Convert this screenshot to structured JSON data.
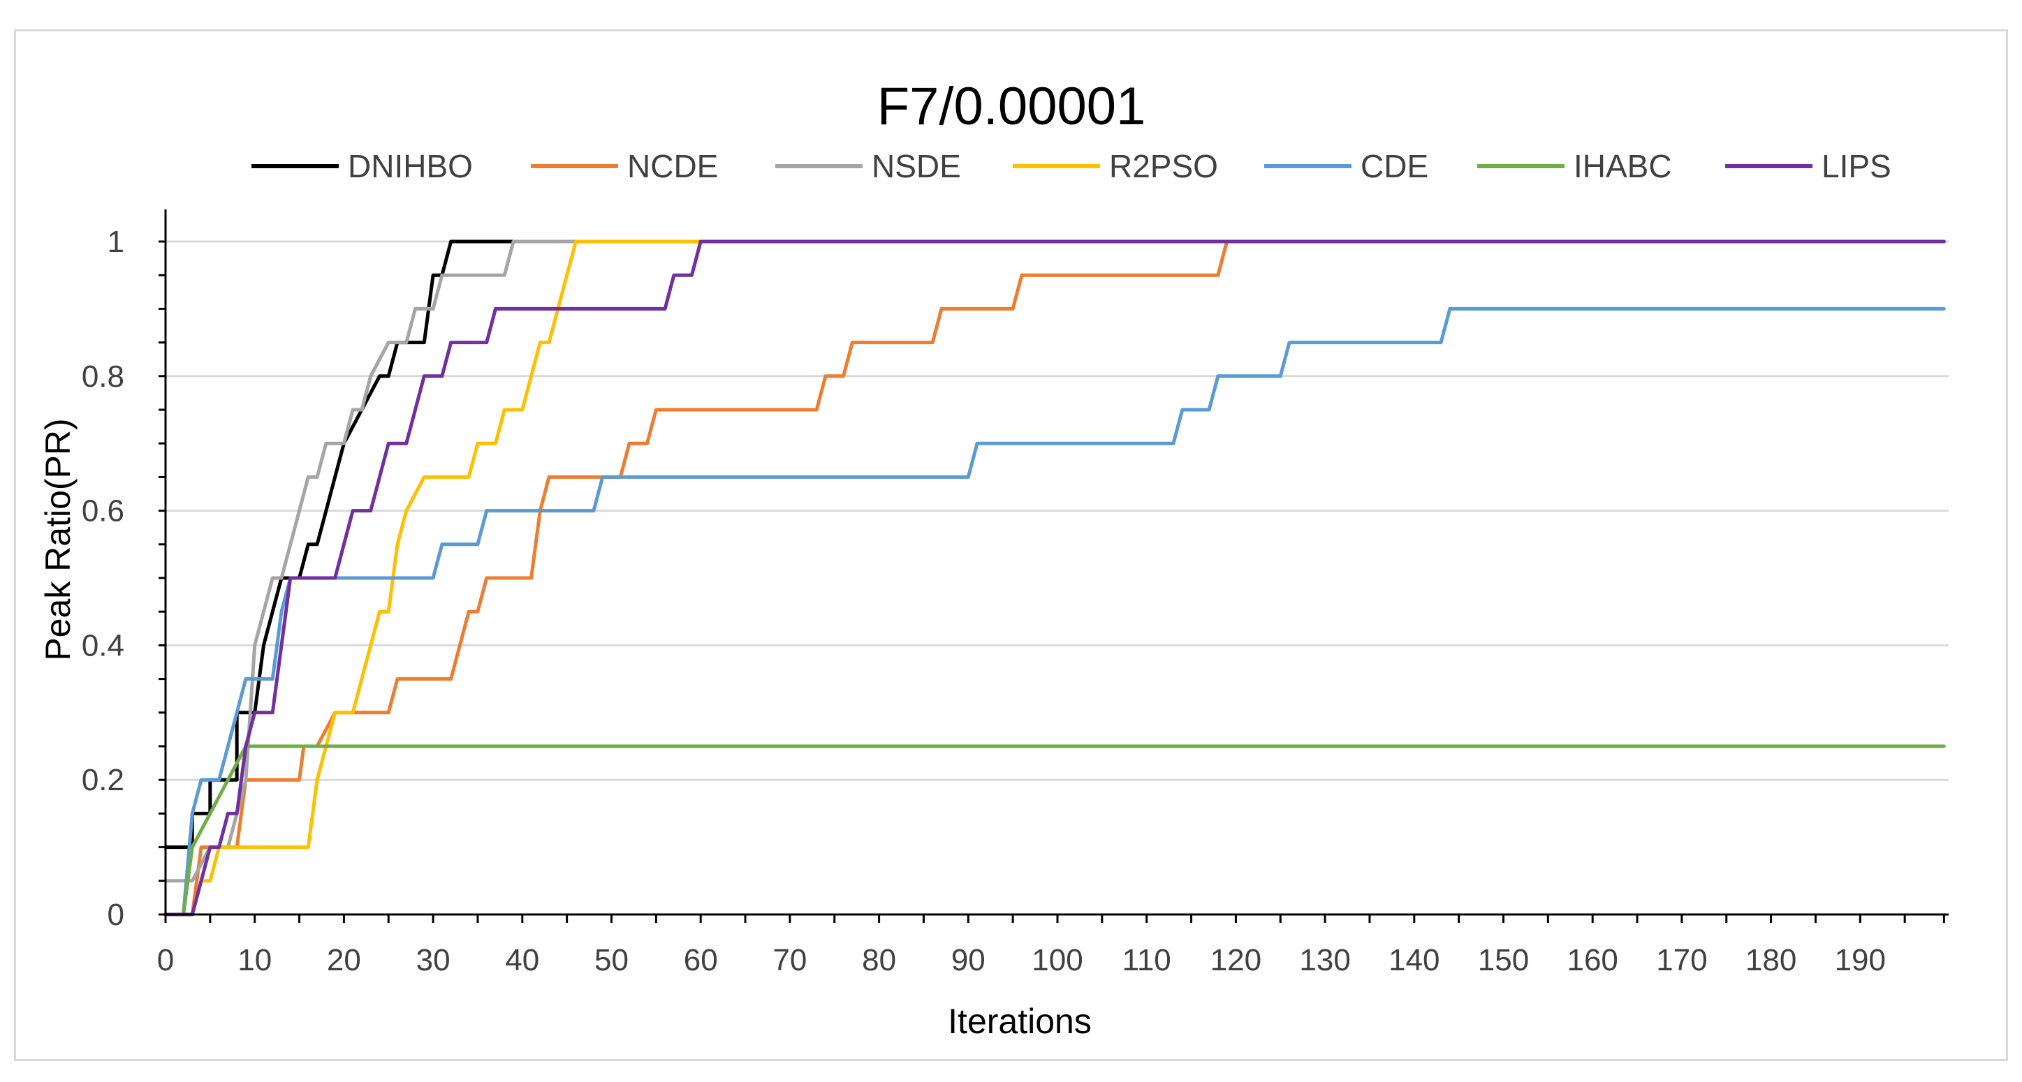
{
  "chart_data": {
    "type": "line",
    "title": "F7/0.00001",
    "xlabel": "Iterations",
    "ylabel": "Peak Ratio(PR)",
    "xlim": [
      0,
      200
    ],
    "ylim": [
      0,
      1
    ],
    "x_ticks": [
      0,
      10,
      20,
      30,
      40,
      50,
      60,
      70,
      80,
      90,
      100,
      110,
      120,
      130,
      140,
      150,
      160,
      170,
      180,
      190
    ],
    "y_ticks": [
      0,
      0.2,
      0.4,
      0.6,
      0.8,
      1
    ],
    "y_tick_labels": [
      "0",
      "0.2",
      "0.4",
      "0.6",
      "0.8",
      "1"
    ],
    "grid": "horizontal",
    "legend_position": "top",
    "series": [
      {
        "name": "DNIHBO",
        "color": "#000000",
        "points": [
          [
            0,
            0.1
          ],
          [
            3,
            0.1
          ],
          [
            3,
            0.15
          ],
          [
            5,
            0.15
          ],
          [
            5,
            0.2
          ],
          [
            8,
            0.2
          ],
          [
            8,
            0.3
          ],
          [
            10,
            0.3
          ],
          [
            11,
            0.4
          ],
          [
            12,
            0.45
          ],
          [
            13,
            0.5
          ],
          [
            15,
            0.5
          ],
          [
            16,
            0.55
          ],
          [
            17,
            0.55
          ],
          [
            18,
            0.6
          ],
          [
            19,
            0.65
          ],
          [
            20,
            0.7
          ],
          [
            22,
            0.75
          ],
          [
            24,
            0.8
          ],
          [
            25,
            0.8
          ],
          [
            26,
            0.85
          ],
          [
            29,
            0.85
          ],
          [
            30,
            0.95
          ],
          [
            31,
            0.95
          ],
          [
            32,
            1
          ],
          [
            200,
            1
          ]
        ]
      },
      {
        "name": "NCDE",
        "color": "#ED7D31",
        "points": [
          [
            0,
            0
          ],
          [
            3,
            0
          ],
          [
            4,
            0.1
          ],
          [
            8,
            0.1
          ],
          [
            9,
            0.2
          ],
          [
            15,
            0.2
          ],
          [
            15.5,
            0.25
          ],
          [
            17,
            0.25
          ],
          [
            19,
            0.3
          ],
          [
            25,
            0.3
          ],
          [
            26,
            0.35
          ],
          [
            32,
            0.35
          ],
          [
            34,
            0.45
          ],
          [
            35,
            0.45
          ],
          [
            36,
            0.5
          ],
          [
            41,
            0.5
          ],
          [
            42,
            0.6
          ],
          [
            43,
            0.65
          ],
          [
            51,
            0.65
          ],
          [
            52,
            0.7
          ],
          [
            54,
            0.7
          ],
          [
            55,
            0.75
          ],
          [
            73,
            0.75
          ],
          [
            74,
            0.8
          ],
          [
            76,
            0.8
          ],
          [
            77,
            0.85
          ],
          [
            86,
            0.85
          ],
          [
            87,
            0.9
          ],
          [
            95,
            0.9
          ],
          [
            96,
            0.95
          ],
          [
            118,
            0.95
          ],
          [
            119,
            1
          ],
          [
            200,
            1
          ]
        ]
      },
      {
        "name": "NSDE",
        "color": "#A5A5A5",
        "points": [
          [
            0,
            0.05
          ],
          [
            2,
            0.05
          ],
          [
            3,
            0.05
          ],
          [
            5,
            0.1
          ],
          [
            7,
            0.1
          ],
          [
            8,
            0.15
          ],
          [
            9,
            0.2
          ],
          [
            9.5,
            0.3
          ],
          [
            10,
            0.4
          ],
          [
            11,
            0.45
          ],
          [
            12,
            0.5
          ],
          [
            13,
            0.5
          ],
          [
            14,
            0.55
          ],
          [
            15,
            0.6
          ],
          [
            16,
            0.65
          ],
          [
            17,
            0.65
          ],
          [
            18,
            0.7
          ],
          [
            20,
            0.7
          ],
          [
            21,
            0.75
          ],
          [
            22,
            0.75
          ],
          [
            23,
            0.8
          ],
          [
            25,
            0.85
          ],
          [
            27,
            0.85
          ],
          [
            28,
            0.9
          ],
          [
            30,
            0.9
          ],
          [
            31,
            0.95
          ],
          [
            38,
            0.95
          ],
          [
            39,
            1
          ],
          [
            200,
            1
          ]
        ]
      },
      {
        "name": "R2PSO",
        "color": "#FFC000",
        "points": [
          [
            0,
            0
          ],
          [
            3,
            0
          ],
          [
            4,
            0.05
          ],
          [
            5,
            0.05
          ],
          [
            6,
            0.1
          ],
          [
            16,
            0.1
          ],
          [
            17,
            0.2
          ],
          [
            18,
            0.25
          ],
          [
            19,
            0.3
          ],
          [
            21,
            0.3
          ],
          [
            23,
            0.4
          ],
          [
            24,
            0.45
          ],
          [
            25,
            0.45
          ],
          [
            26,
            0.55
          ],
          [
            27,
            0.6
          ],
          [
            29,
            0.65
          ],
          [
            34,
            0.65
          ],
          [
            35,
            0.7
          ],
          [
            37,
            0.7
          ],
          [
            38,
            0.75
          ],
          [
            40,
            0.75
          ],
          [
            41,
            0.8
          ],
          [
            42,
            0.85
          ],
          [
            43,
            0.85
          ],
          [
            44,
            0.9
          ],
          [
            45,
            0.95
          ],
          [
            46,
            1
          ],
          [
            200,
            1
          ]
        ]
      },
      {
        "name": "CDE",
        "color": "#5B9BD5",
        "points": [
          [
            0,
            0
          ],
          [
            2,
            0
          ],
          [
            3,
            0.15
          ],
          [
            4,
            0.2
          ],
          [
            6,
            0.2
          ],
          [
            7,
            0.25
          ],
          [
            8,
            0.3
          ],
          [
            9,
            0.35
          ],
          [
            12,
            0.35
          ],
          [
            13,
            0.45
          ],
          [
            14,
            0.5
          ],
          [
            30,
            0.5
          ],
          [
            31,
            0.55
          ],
          [
            35,
            0.55
          ],
          [
            36,
            0.6
          ],
          [
            48,
            0.6
          ],
          [
            49,
            0.65
          ],
          [
            90,
            0.65
          ],
          [
            91,
            0.7
          ],
          [
            113,
            0.7
          ],
          [
            114,
            0.75
          ],
          [
            117,
            0.75
          ],
          [
            118,
            0.8
          ],
          [
            125,
            0.8
          ],
          [
            126,
            0.85
          ],
          [
            143,
            0.85
          ],
          [
            144,
            0.9
          ],
          [
            200,
            0.9
          ]
        ]
      },
      {
        "name": "IHABC",
        "color": "#70AD47",
        "points": [
          [
            0,
            0
          ],
          [
            2,
            0
          ],
          [
            3,
            0.1
          ],
          [
            5,
            0.15
          ],
          [
            7,
            0.2
          ],
          [
            9,
            0.25
          ],
          [
            200,
            0.25
          ]
        ]
      },
      {
        "name": "LIPS",
        "color": "#7030A0",
        "points": [
          [
            0,
            0
          ],
          [
            3,
            0
          ],
          [
            4,
            0.05
          ],
          [
            5,
            0.1
          ],
          [
            6,
            0.1
          ],
          [
            7,
            0.15
          ],
          [
            8,
            0.15
          ],
          [
            9,
            0.25
          ],
          [
            10,
            0.3
          ],
          [
            12,
            0.3
          ],
          [
            13,
            0.4
          ],
          [
            14,
            0.5
          ],
          [
            19,
            0.5
          ],
          [
            21,
            0.6
          ],
          [
            23,
            0.6
          ],
          [
            25,
            0.7
          ],
          [
            27,
            0.7
          ],
          [
            29,
            0.8
          ],
          [
            31,
            0.8
          ],
          [
            32,
            0.85
          ],
          [
            36,
            0.85
          ],
          [
            37,
            0.9
          ],
          [
            56,
            0.9
          ],
          [
            57,
            0.95
          ],
          [
            59,
            0.95
          ],
          [
            60,
            1
          ],
          [
            200,
            1
          ]
        ]
      }
    ]
  }
}
